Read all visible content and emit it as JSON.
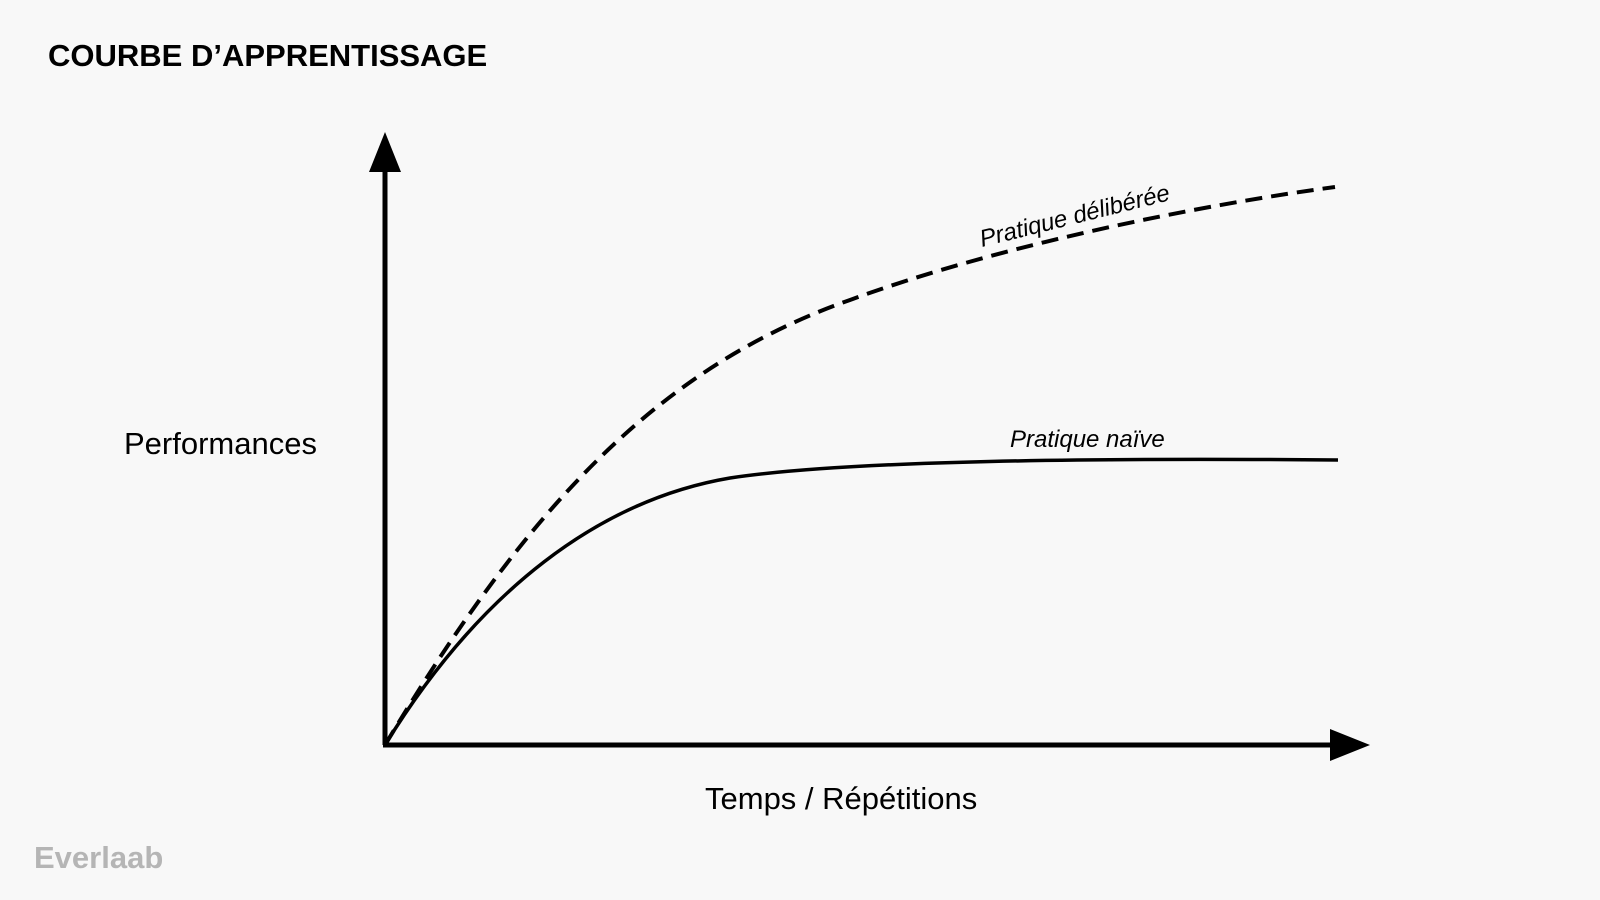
{
  "title": "COURBE D’APPRENTISSAGE",
  "diagram": {
    "y_axis_label": "Performances",
    "x_axis_label": "Temps / Répétitions",
    "curves": [
      {
        "label": "Pratique délibérée",
        "style": "dashed"
      },
      {
        "label": "Pratique naïve",
        "style": "solid"
      }
    ],
    "colors": {
      "background": "#f8f8f8",
      "ink": "#000000",
      "brand": "#b5b5b5"
    }
  },
  "brand": "Everlaab"
}
